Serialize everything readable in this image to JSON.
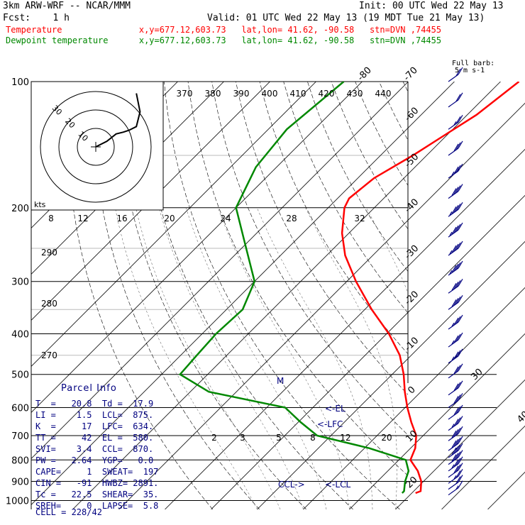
{
  "header": {
    "model": "3km ARW-WRF -- NCAR/MMM",
    "init": "Init: 00 UTC Wed 22 May 13",
    "fcst": "Fcst:    1 h",
    "valid": "Valid: 01 UTC Wed 22 May 13 (19 MDT Tue 21 May 13)",
    "temp_line": "Temperature               x,y=677.12,603.73   lat,lon= 41.62, -90.58   stn=DVN ,74455",
    "dew_line": "Dewpoint temperature      x,y=677.12,603.73   lat,lon= 41.62, -90.58   stn=DVN ,74455",
    "barb_key_1": "Full barb:",
    "barb_key_2": "5 m s-1"
  },
  "colors": {
    "temperature": "#ff0000",
    "dewpoint": "#008800",
    "labels": "#000080",
    "isotherm": "#000000",
    "adiabat": "#000000"
  },
  "chart_data": {
    "type": "line",
    "subtype": "skew-T log-p diagram",
    "pressure_ticks": [
      "100",
      "200",
      "300",
      "400",
      "500",
      "600",
      "700",
      "800",
      "900",
      "1000"
    ],
    "isotherm_labels": [
      "-80",
      "-70",
      "-60",
      "-50",
      "-40",
      "-30",
      "-20",
      "-10",
      "0",
      "10",
      "20",
      "30",
      "40"
    ],
    "theta_labels": [
      "290",
      "280",
      "270"
    ],
    "theta_e_labels": [
      "370",
      "380",
      "390",
      "400",
      "410",
      "420",
      "430",
      "440"
    ],
    "mixing_ratio_labels": [
      "2",
      "3",
      "5",
      "8",
      "12",
      "20"
    ],
    "series": [
      {
        "name": "Temperature",
        "color": "#ff0000",
        "points": [
          [
            100,
            -46.0
          ],
          [
            120,
            -48.0
          ],
          [
            150,
            -53.0
          ],
          [
            170,
            -56.5
          ],
          [
            190,
            -57.5
          ],
          [
            200,
            -56.5
          ],
          [
            230,
            -51.5
          ],
          [
            260,
            -46.0
          ],
          [
            300,
            -38.0
          ],
          [
            350,
            -28.5
          ],
          [
            400,
            -19.5
          ],
          [
            450,
            -12.5
          ],
          [
            500,
            -7.5
          ],
          [
            550,
            -3.5
          ],
          [
            600,
            0.5
          ],
          [
            650,
            4.5
          ],
          [
            700,
            8.5
          ],
          [
            750,
            11.0
          ],
          [
            800,
            12.5
          ],
          [
            850,
            16.5
          ],
          [
            900,
            19.5
          ],
          [
            950,
            21.5
          ],
          [
            960,
            20.8
          ]
        ]
      },
      {
        "name": "Dewpoint temperature",
        "color": "#008800",
        "points": [
          [
            100,
            -84.0
          ],
          [
            130,
            -86.0
          ],
          [
            160,
            -84.5
          ],
          [
            200,
            -80.0
          ],
          [
            250,
            -69.0
          ],
          [
            300,
            -60.0
          ],
          [
            350,
            -56.5
          ],
          [
            400,
            -57.0
          ],
          [
            450,
            -56.5
          ],
          [
            500,
            -56.0
          ],
          [
            550,
            -46.0
          ],
          [
            600,
            -26.0
          ],
          [
            650,
            -19.5
          ],
          [
            700,
            -13.0
          ],
          [
            750,
            1.0
          ],
          [
            800,
            11.5
          ],
          [
            850,
            14.5
          ],
          [
            900,
            16.0
          ],
          [
            950,
            17.9
          ],
          [
            960,
            17.9
          ]
        ]
      }
    ],
    "annotations": [
      "M",
      "<-EL",
      "<-LFC",
      "CCL->",
      "<-LCL"
    ],
    "hodograph": {
      "units": "kts",
      "ring_labels": [
        "10",
        "20",
        "30"
      ],
      "speed_ticks": [
        "8",
        "12",
        "16",
        "20",
        "24",
        "28",
        "32"
      ],
      "trace": [
        [
          0,
          0
        ],
        [
          6,
          3
        ],
        [
          11,
          7
        ],
        [
          15,
          8
        ],
        [
          18,
          9
        ],
        [
          22,
          11
        ],
        [
          24,
          19
        ],
        [
          22,
          29
        ]
      ]
    },
    "wind_barbs": {
      "pressures": [
        100,
        115,
        130,
        150,
        170,
        190,
        210,
        235,
        260,
        290,
        320,
        350,
        390,
        430,
        470,
        510,
        560,
        600,
        640,
        680,
        720,
        760,
        790,
        820,
        850,
        880,
        910,
        940,
        970
      ],
      "speeds_kt": [
        20,
        20,
        25,
        30,
        35,
        40,
        45,
        45,
        45,
        45,
        40,
        40,
        35,
        35,
        35,
        30,
        30,
        30,
        30,
        35,
        40,
        40,
        40,
        40,
        35,
        30,
        25,
        20,
        15
      ]
    }
  },
  "parcel_info": {
    "title": "Parcel Info",
    "rows": [
      "T  =   20.8  Td =  17.9",
      "LI =    1.5  LCL=  875.",
      "K  =     17  LFC=  634.",
      "TT =     42  EL =  580.",
      "SVI=    3.4  CCL=  870.",
      "PW =   2.64  YGP=   0.0",
      "CAPE=     1  SWEAT=  197",
      "CIN =   -91  HWBZ= 2891.",
      "Tc =   22.5  SHEAR=  35.",
      "SREH=     0  LAPSE=  5.8",
      "CELL = 228/42"
    ]
  }
}
